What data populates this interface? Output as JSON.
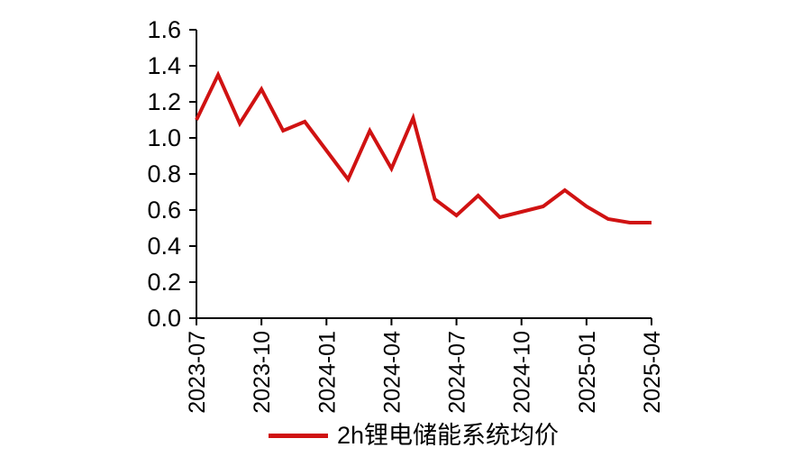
{
  "chart_data": {
    "type": "line",
    "title": "",
    "xlabel": "",
    "ylabel": "",
    "x": [
      "2023-07",
      "2023-08",
      "2023-09",
      "2023-10",
      "2023-11",
      "2023-12",
      "2024-01",
      "2024-02",
      "2024-03",
      "2024-04",
      "2024-05",
      "2024-06",
      "2024-07",
      "2024-08",
      "2024-09",
      "2024-10",
      "2024-11",
      "2024-12",
      "2025-01",
      "2025-02",
      "2025-03",
      "2025-04"
    ],
    "series": [
      {
        "name": "2h锂电储能系统均价",
        "color": "#d01212",
        "values": [
          1.1,
          1.35,
          1.08,
          1.27,
          1.04,
          1.09,
          0.93,
          0.77,
          1.04,
          0.83,
          1.11,
          0.66,
          0.57,
          0.68,
          0.56,
          0.59,
          0.62,
          0.71,
          0.62,
          0.55,
          0.53,
          0.53
        ]
      }
    ],
    "ylim": [
      0.0,
      1.6
    ],
    "yticks": [
      0.0,
      0.2,
      0.4,
      0.6,
      0.8,
      1.0,
      1.2,
      1.4,
      1.6
    ],
    "ytick_labels": [
      "0.0",
      "0.2",
      "0.4",
      "0.6",
      "0.8",
      "1.0",
      "1.2",
      "1.4",
      "1.6"
    ],
    "xtick_labels": [
      "2023-07",
      "2023-10",
      "2024-01",
      "2024-04",
      "2024-07",
      "2024-10",
      "2025-01",
      "2025-04"
    ],
    "x_label_rotation": -90,
    "grid": false,
    "legend_position": "bottom",
    "axis_color": "#000000",
    "background": "#ffffff"
  },
  "legend": {
    "label": "2h锂电储能系统均价"
  }
}
